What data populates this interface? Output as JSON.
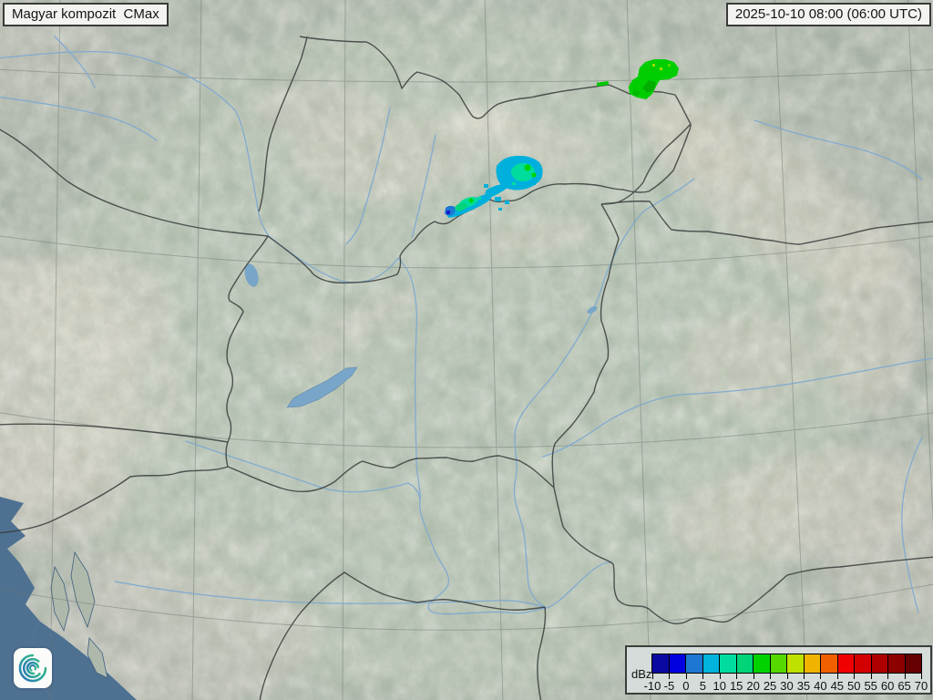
{
  "title_box": {
    "label": "Magyar kompozit  CMax"
  },
  "time_box": {
    "label": "2025-10-10 08:00 (06:00 UTC)"
  },
  "legend": {
    "unit": "dBz",
    "tick_labels": [
      "-10",
      "-5",
      "0",
      "5",
      "10",
      "15",
      "20",
      "25",
      "30",
      "35",
      "40",
      "45",
      "50",
      "55",
      "60",
      "65",
      "70"
    ],
    "colors": [
      "#0A0AA0",
      "#0000E0",
      "#1E78D2",
      "#00B4DC",
      "#00DCA0",
      "#00D478",
      "#00D200",
      "#54D800",
      "#C0E000",
      "#F0B400",
      "#F06000",
      "#F00000",
      "#D40000",
      "#AE0000",
      "#8C0000",
      "#640000"
    ]
  },
  "radar_echo_colors": {
    "weak_blue": "#1E78D2",
    "light_cyan": "#00B0DC",
    "moderate_turquoise": "#00DC9C",
    "strong_green": "#00CE00"
  },
  "map_colors": {
    "land_outside_coverage": "#A9B3A7",
    "land_inside_coverage": "#B4C4B0",
    "sea": "#4E7192",
    "river": "#7FA9D0",
    "lake": "#78A5C8",
    "border": "#383B3A",
    "mountain": "#D8D3C5"
  },
  "branding": {
    "logo_gradient": [
      "#2B6FB8",
      "#2AA79B",
      "#49C27E"
    ]
  }
}
